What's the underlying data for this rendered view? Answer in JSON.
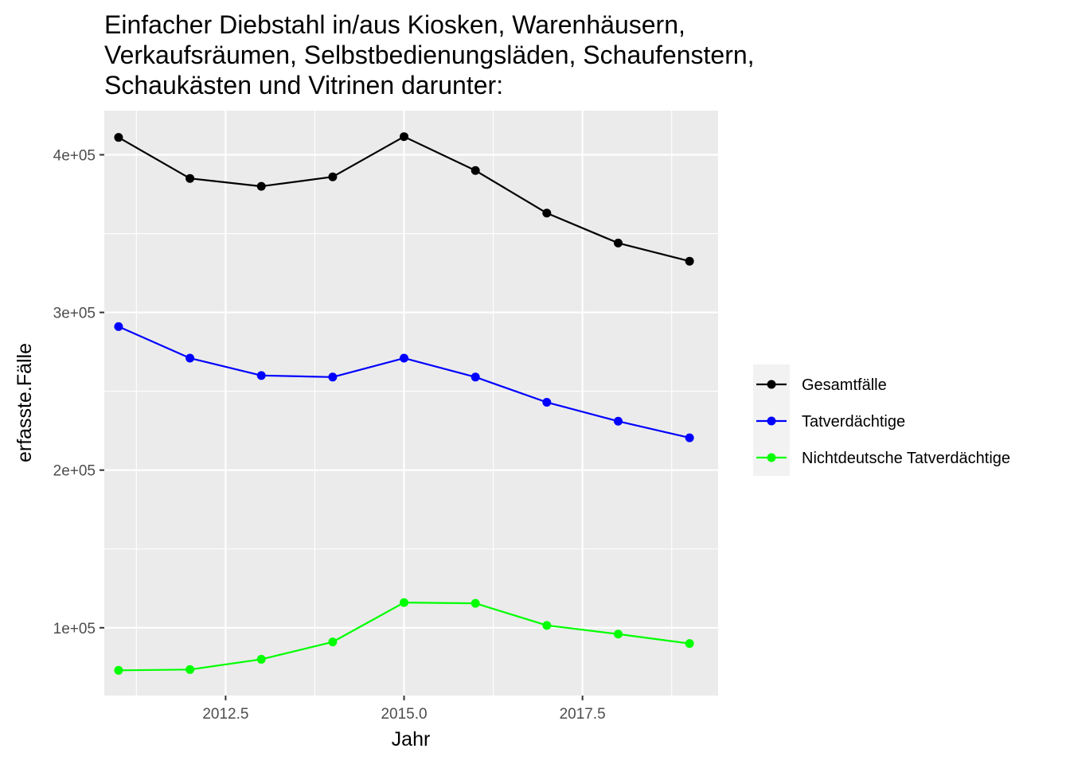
{
  "chart_data": {
    "type": "line",
    "title_lines": [
      "Einfacher Diebstahl in/aus Kiosken, Warenhäusern,",
      "Verkaufsräumen, Selbstbedienungsläden, Schaufenstern,",
      "Schaukästen und Vitrinen darunter:"
    ],
    "xlabel": "Jahr",
    "ylabel": "erfasste.Fälle",
    "x": [
      2011,
      2012,
      2013,
      2014,
      2015,
      2016,
      2017,
      2018,
      2019
    ],
    "xlim": [
      2010.8,
      2019.4
    ],
    "ylim": [
      57000,
      428000
    ],
    "x_ticks": [
      2012.5,
      2015.0,
      2017.5
    ],
    "x_tick_labels": [
      "2012.5",
      "2015.0",
      "2017.5"
    ],
    "y_ticks": [
      100000,
      200000,
      300000,
      400000
    ],
    "y_tick_labels": [
      "1e+05",
      "2e+05",
      "3e+05",
      "4e+05"
    ],
    "grid": true,
    "panel_background": "#ebebeb",
    "legend_position": "right",
    "series": [
      {
        "name": "Gesamtfälle",
        "color": "#000000",
        "values": [
          411000,
          385000,
          380000,
          386000,
          411500,
          390000,
          363000,
          344000,
          332500
        ]
      },
      {
        "name": "Tatverdächtige",
        "color": "#0000ff",
        "values": [
          291000,
          271000,
          260000,
          259000,
          271000,
          259000,
          243000,
          231000,
          220500
        ]
      },
      {
        "name": "Nichtdeutsche Tatverdächtige",
        "color": "#00ff00",
        "values": [
          73000,
          73500,
          80000,
          91000,
          116000,
          115500,
          101500,
          96000,
          90000
        ]
      }
    ]
  }
}
